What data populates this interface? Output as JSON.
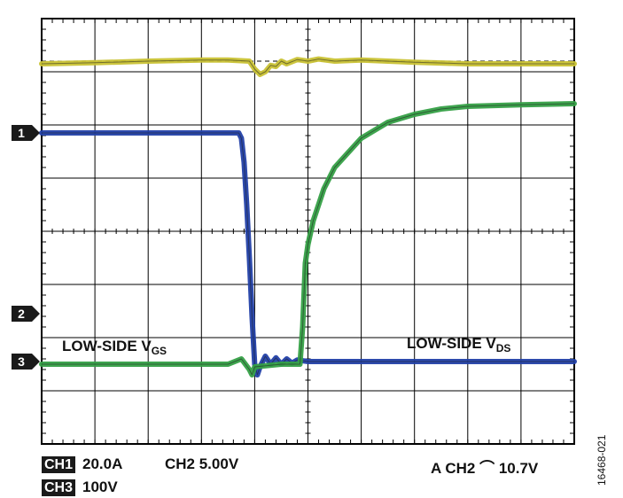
{
  "chart_data": {
    "type": "line",
    "title": "",
    "grid": true,
    "divisions": {
      "x": 10,
      "y": 8
    },
    "ylim": [
      -4,
      4
    ],
    "xlim": [
      0,
      10
    ],
    "markers": [
      {
        "label": "1",
        "level": 1.85,
        "color": "#1c3d9c"
      },
      {
        "label": "2",
        "level": -1.55,
        "color": "#1c3d9c"
      },
      {
        "label": "3",
        "level": -2.45,
        "color": "#1c3d9c"
      }
    ],
    "trigger_level": 3.2,
    "series": [
      {
        "name": "CH1",
        "color": "#c9c234",
        "x": [
          0,
          1,
          2,
          3,
          3.5,
          3.9,
          4.0,
          4.1,
          4.2,
          4.3,
          4.4,
          4.5,
          4.6,
          4.8,
          5.0,
          5.2,
          5.5,
          6,
          7,
          8,
          9,
          10
        ],
        "y": [
          3.15,
          3.17,
          3.2,
          3.22,
          3.22,
          3.2,
          3.05,
          2.95,
          3.0,
          3.12,
          3.1,
          3.2,
          3.15,
          3.23,
          3.2,
          3.24,
          3.2,
          3.22,
          3.18,
          3.15,
          3.15,
          3.15
        ]
      },
      {
        "name": "CH2",
        "color": "#2240a8",
        "x": [
          0,
          3,
          3.7,
          3.75,
          3.8,
          3.85,
          3.9,
          3.95,
          4.0,
          4.05,
          4.1,
          4.2,
          4.3,
          4.4,
          4.5,
          4.6,
          4.7,
          4.8,
          5.0,
          6,
          7,
          8,
          9,
          10
        ],
        "y": [
          1.85,
          1.85,
          1.85,
          1.75,
          1.3,
          0.5,
          -0.5,
          -1.6,
          -2.5,
          -2.7,
          -2.55,
          -2.35,
          -2.5,
          -2.38,
          -2.5,
          -2.4,
          -2.48,
          -2.42,
          -2.45,
          -2.45,
          -2.45,
          -2.45,
          -2.45,
          -2.45
        ]
      },
      {
        "name": "CH3",
        "color": "#35a046",
        "x": [
          0,
          3,
          3.5,
          3.75,
          3.9,
          3.95,
          4.0,
          4.5,
          4.85,
          4.9,
          4.95,
          5.0,
          5.1,
          5.3,
          5.5,
          6,
          6.5,
          7,
          7.5,
          8,
          9,
          10
        ],
        "y": [
          -2.5,
          -2.5,
          -2.5,
          -2.4,
          -2.6,
          -2.7,
          -2.55,
          -2.5,
          -2.5,
          -1.8,
          -0.6,
          -0.25,
          0.2,
          0.8,
          1.2,
          1.75,
          2.05,
          2.2,
          2.3,
          2.35,
          2.38,
          2.4
        ]
      }
    ]
  },
  "annotations": {
    "vgs_label": "LOW-SIDE V",
    "vgs_sub": "GS",
    "vds_label": "LOW-SIDE V",
    "vds_sub": "DS"
  },
  "settings": {
    "ch1_tag": "CH1",
    "ch1_scale": "20.0A",
    "ch2_text": "CH2 5.00V",
    "ch3_tag": "CH3",
    "ch3_scale": "100V",
    "trigger_text": "A  CH2 ⌒​ 10.7V"
  },
  "figure_id": "16468-021"
}
